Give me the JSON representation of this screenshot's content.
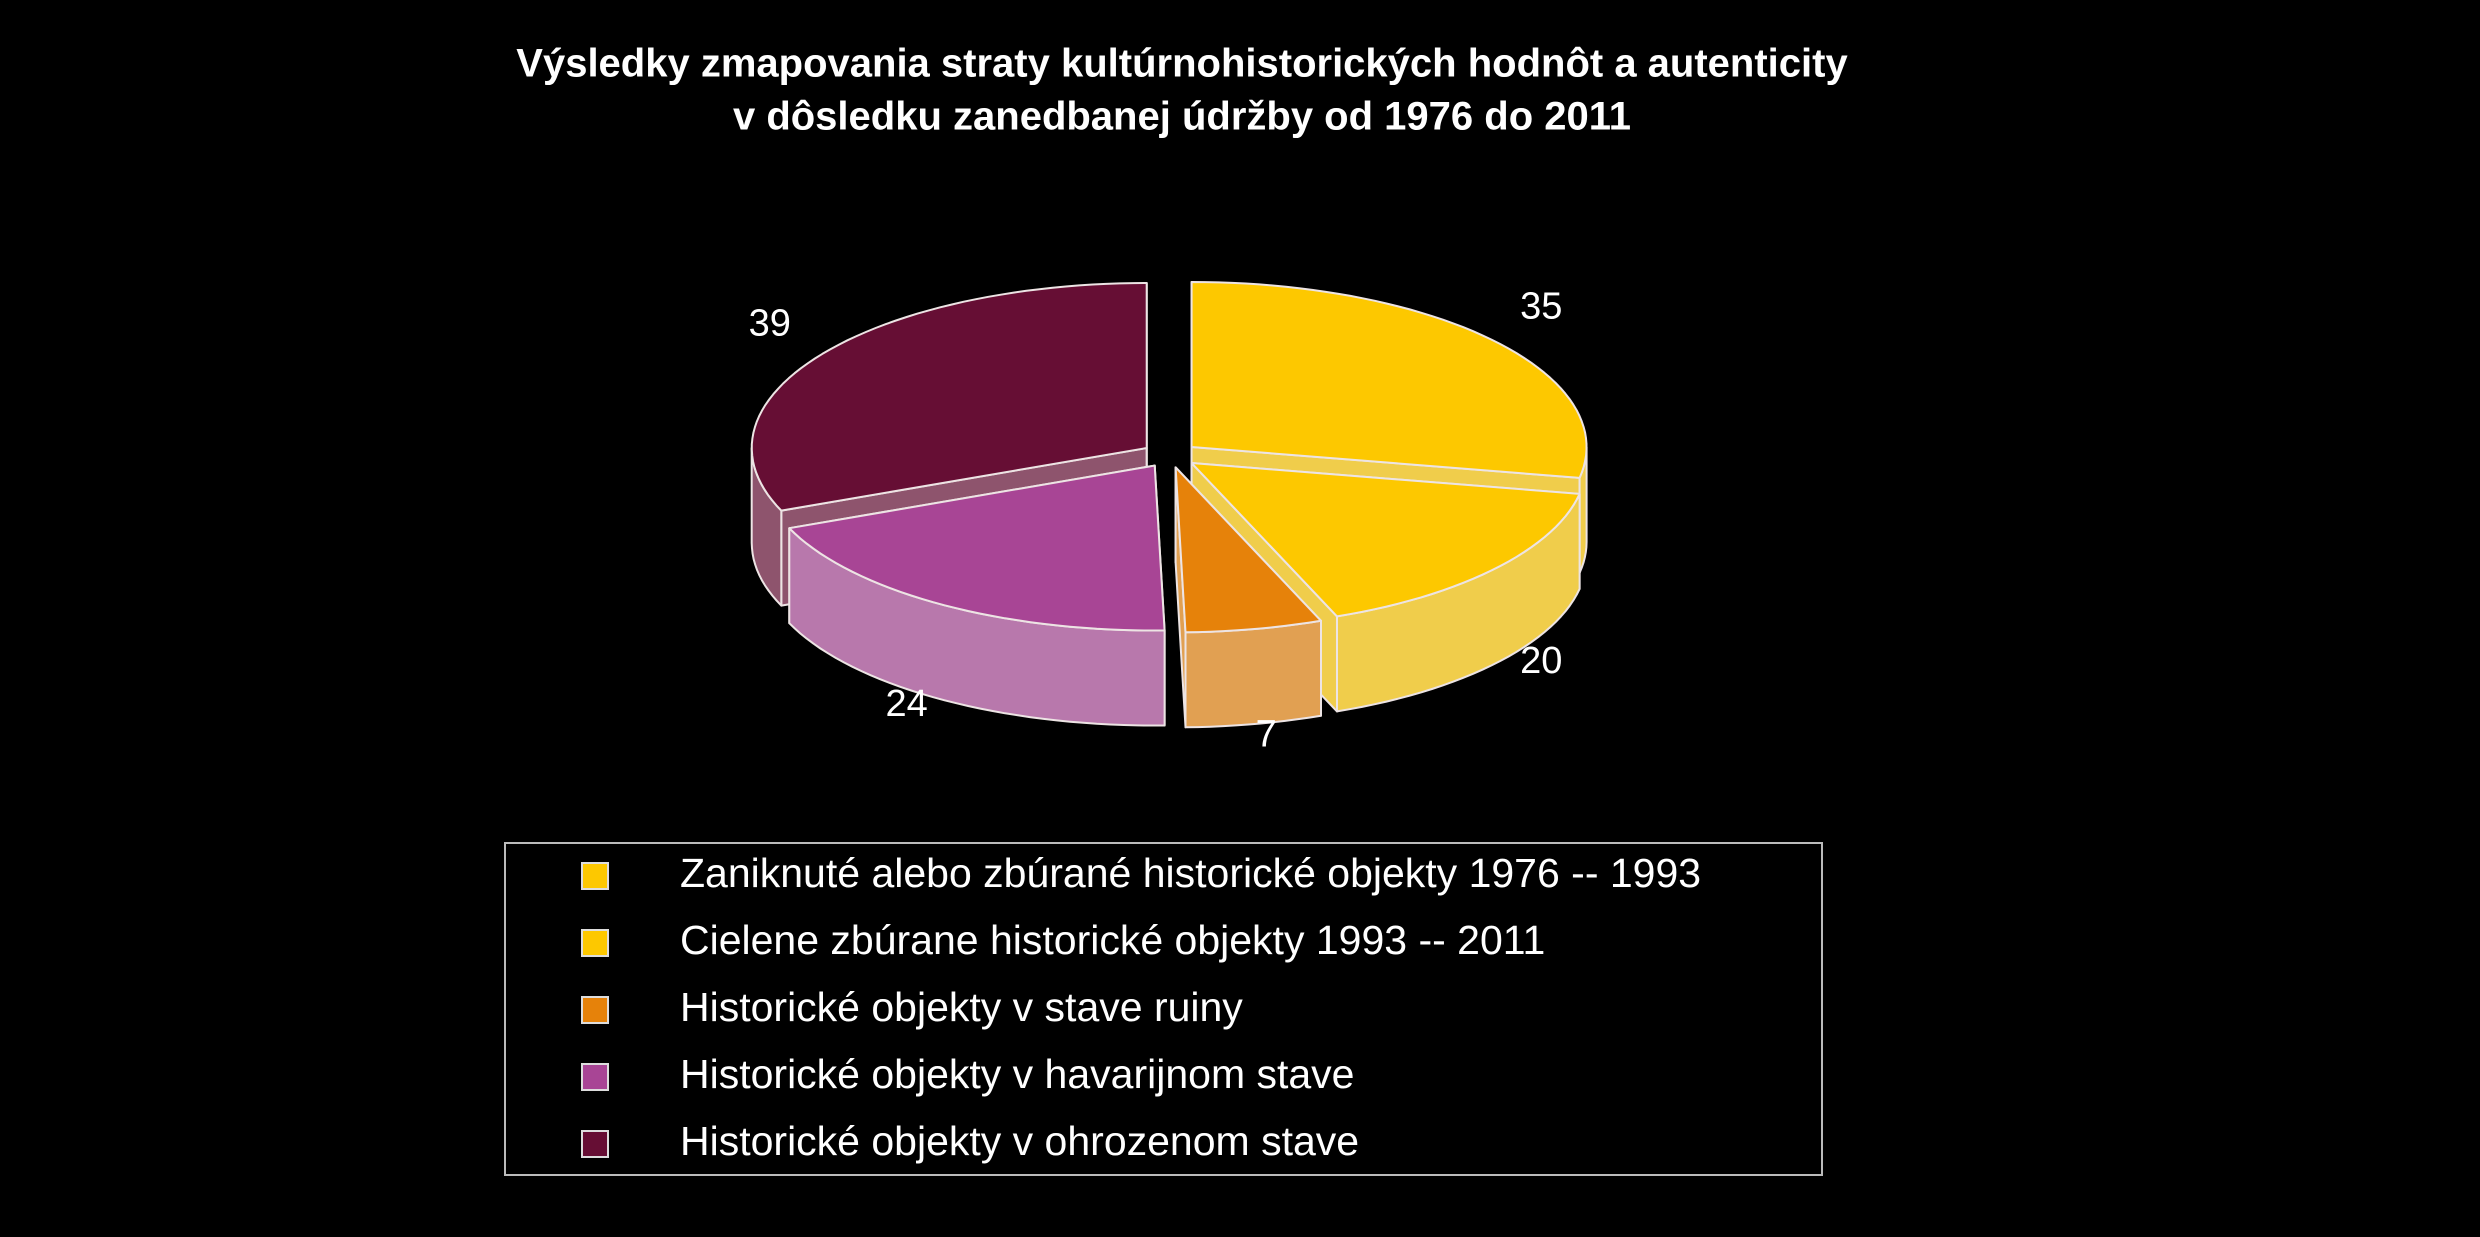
{
  "chart_data": {
    "type": "pie3d",
    "title": [
      "Výsledky zmapovania straty kultúrnohistorických hodnôt a autenticity",
      "v dôsledku zanedbanej údržby od 1976 do 2011"
    ],
    "categories": [
      "Zaniknuté alebo zbúrané historické objekty 1976 -- 1993",
      "Cielene zbúrane historické objekty 1993 -- 2011",
      "Historické objekty v stave ruiny",
      "Historické objekty v havarijnom stave",
      "Historické objekty v ohrozenom stave"
    ],
    "values": [
      35,
      20,
      7,
      24,
      39
    ],
    "colors": [
      "#fdc800",
      "#fdc800",
      "#e6820a",
      "#a84595",
      "#660e34"
    ],
    "legend": "bottom"
  }
}
